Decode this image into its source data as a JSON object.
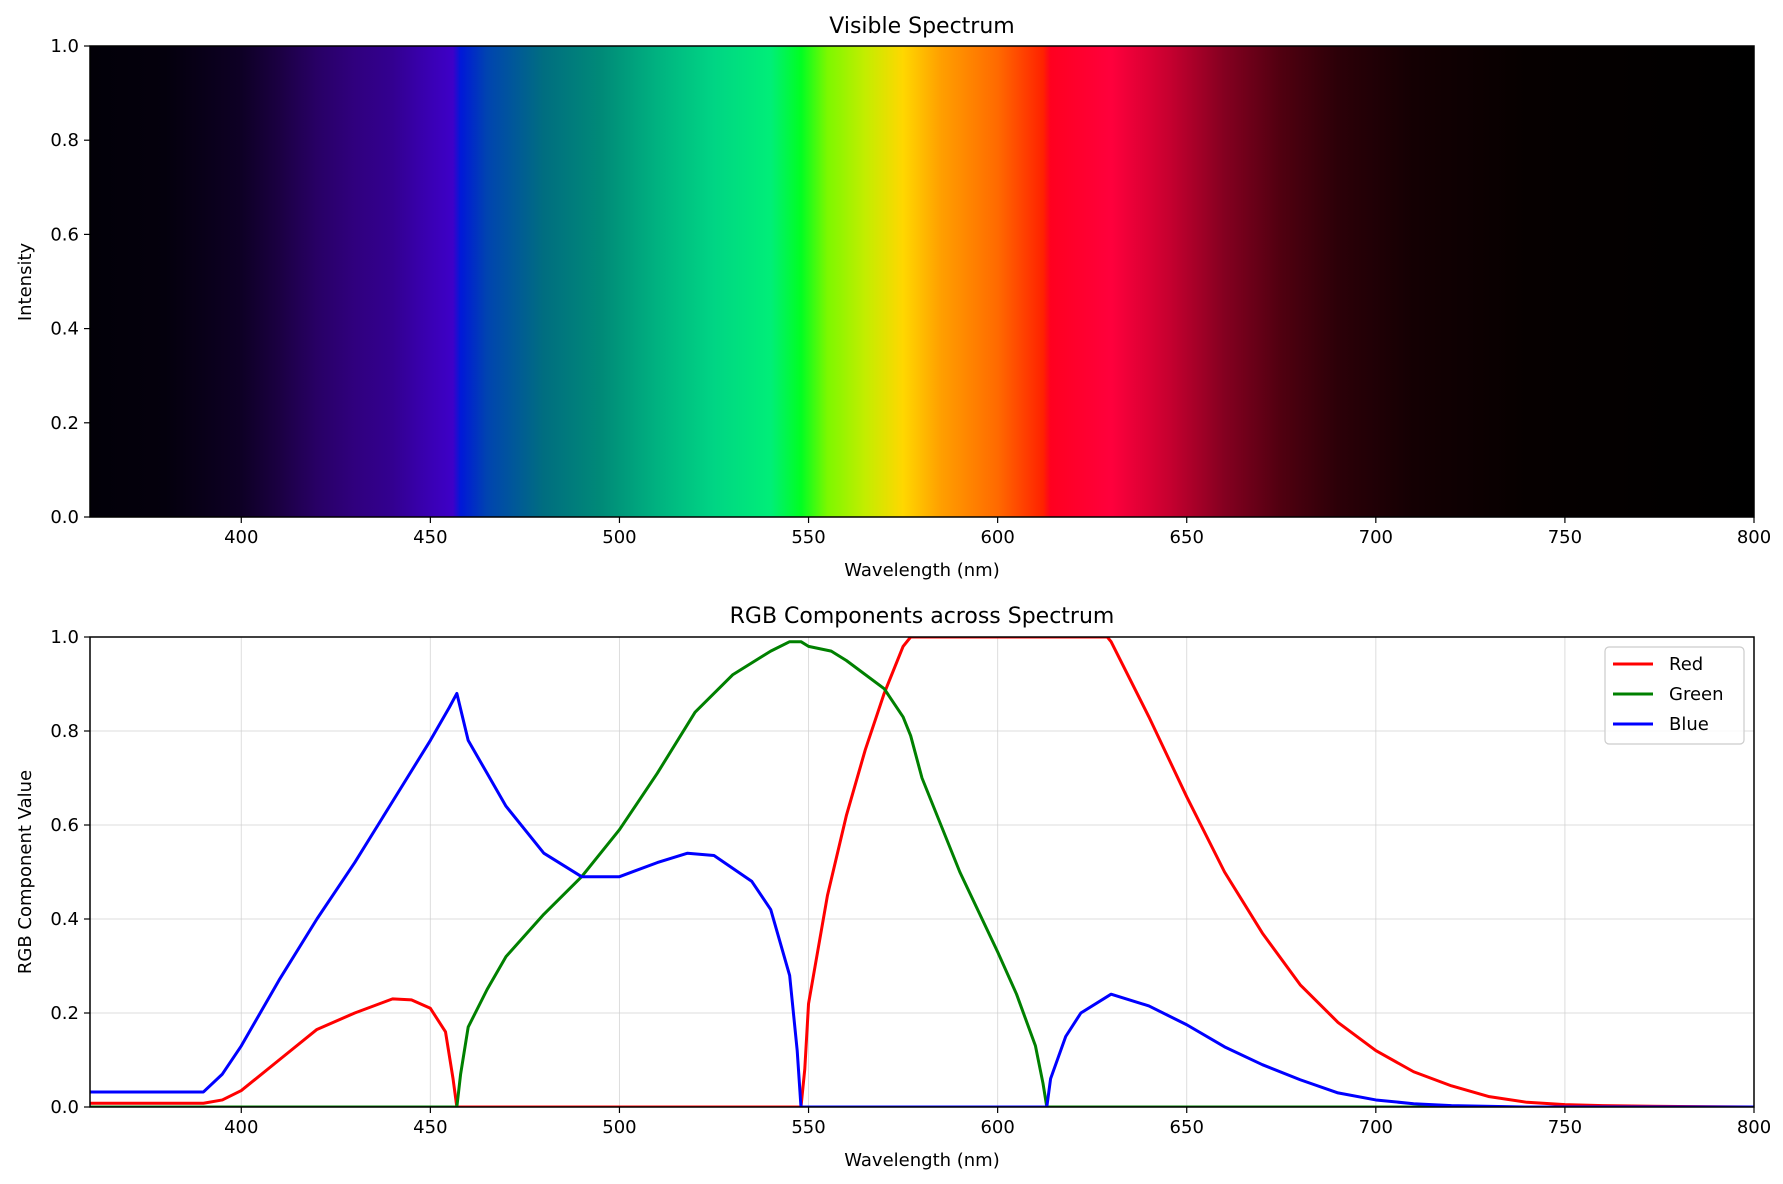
{
  "chart_data": [
    {
      "type": "heatmap",
      "title": "Visible Spectrum",
      "xlabel": "Wavelength (nm)",
      "ylabel": "Intensity",
      "xlim": [
        360,
        800
      ],
      "ylim": [
        0,
        1
      ],
      "xticks": [
        400,
        450,
        500,
        550,
        600,
        650,
        700,
        750,
        800
      ],
      "yticks": [
        0.0,
        0.2,
        0.4,
        0.6,
        0.8,
        1.0
      ],
      "grid": false,
      "legend": "none",
      "colors": [
        {
          "x": 360,
          "color": "#020008"
        },
        {
          "x": 380,
          "color": "#04000d"
        },
        {
          "x": 400,
          "color": "#0e0025"
        },
        {
          "x": 410,
          "color": "#1b0042"
        },
        {
          "x": 420,
          "color": "#280065"
        },
        {
          "x": 430,
          "color": "#30007e"
        },
        {
          "x": 440,
          "color": "#330090"
        },
        {
          "x": 450,
          "color": "#3a00b4"
        },
        {
          "x": 456,
          "color": "#3e00c8"
        },
        {
          "x": 458,
          "color": "#0018d8"
        },
        {
          "x": 465,
          "color": "#0044b0"
        },
        {
          "x": 480,
          "color": "#006e80"
        },
        {
          "x": 495,
          "color": "#008a78"
        },
        {
          "x": 510,
          "color": "#00b280"
        },
        {
          "x": 525,
          "color": "#00d584"
        },
        {
          "x": 540,
          "color": "#00ee78"
        },
        {
          "x": 548,
          "color": "#00ff22"
        },
        {
          "x": 555,
          "color": "#7cf800"
        },
        {
          "x": 565,
          "color": "#c3ed00"
        },
        {
          "x": 575,
          "color": "#ffd700"
        },
        {
          "x": 585,
          "color": "#ff9f00"
        },
        {
          "x": 600,
          "color": "#ff6a00"
        },
        {
          "x": 612,
          "color": "#ff2200"
        },
        {
          "x": 614,
          "color": "#ff0020"
        },
        {
          "x": 630,
          "color": "#ff003c"
        },
        {
          "x": 645,
          "color": "#c80030"
        },
        {
          "x": 660,
          "color": "#840020"
        },
        {
          "x": 675,
          "color": "#500010"
        },
        {
          "x": 690,
          "color": "#2c0008"
        },
        {
          "x": 710,
          "color": "#140003"
        },
        {
          "x": 740,
          "color": "#060000"
        },
        {
          "x": 800,
          "color": "#000000"
        }
      ]
    },
    {
      "type": "line",
      "title": "RGB Components across Spectrum",
      "xlabel": "Wavelength (nm)",
      "ylabel": "RGB Component Value",
      "xlim": [
        360,
        800
      ],
      "ylim": [
        0,
        1
      ],
      "xticks": [
        400,
        450,
        500,
        550,
        600,
        650,
        700,
        750,
        800
      ],
      "yticks": [
        0.0,
        0.2,
        0.4,
        0.6,
        0.8,
        1.0
      ],
      "grid": true,
      "legend": "top-right",
      "series": [
        {
          "name": "Red",
          "color": "#ff0000",
          "points": [
            [
              360,
              0.008
            ],
            [
              390,
              0.008
            ],
            [
              395,
              0.015
            ],
            [
              400,
              0.035
            ],
            [
              410,
              0.1
            ],
            [
              420,
              0.165
            ],
            [
              430,
              0.2
            ],
            [
              440,
              0.23
            ],
            [
              445,
              0.228
            ],
            [
              450,
              0.21
            ],
            [
              454,
              0.16
            ],
            [
              456,
              0.06
            ],
            [
              457,
              0.0
            ],
            [
              548,
              0.0
            ],
            [
              549,
              0.08
            ],
            [
              550,
              0.22
            ],
            [
              555,
              0.45
            ],
            [
              560,
              0.62
            ],
            [
              565,
              0.76
            ],
            [
              570,
              0.88
            ],
            [
              575,
              0.98
            ],
            [
              577,
              1.0
            ],
            [
              629,
              1.0
            ],
            [
              630,
              0.99
            ],
            [
              640,
              0.83
            ],
            [
              650,
              0.66
            ],
            [
              660,
              0.5
            ],
            [
              670,
              0.37
            ],
            [
              680,
              0.26
            ],
            [
              690,
              0.18
            ],
            [
              700,
              0.12
            ],
            [
              710,
              0.075
            ],
            [
              720,
              0.045
            ],
            [
              730,
              0.022
            ],
            [
              740,
              0.01
            ],
            [
              750,
              0.005
            ],
            [
              760,
              0.003
            ],
            [
              780,
              0.001
            ],
            [
              800,
              0.0
            ]
          ]
        },
        {
          "name": "Green",
          "color": "#008000",
          "points": [
            [
              360,
              0.0
            ],
            [
              457,
              0.0
            ],
            [
              458,
              0.07
            ],
            [
              460,
              0.17
            ],
            [
              465,
              0.25
            ],
            [
              470,
              0.32
            ],
            [
              480,
              0.41
            ],
            [
              490,
              0.49
            ],
            [
              500,
              0.59
            ],
            [
              510,
              0.71
            ],
            [
              520,
              0.84
            ],
            [
              530,
              0.92
            ],
            [
              540,
              0.97
            ],
            [
              545,
              0.99
            ],
            [
              548,
              0.99
            ],
            [
              550,
              0.98
            ],
            [
              556,
              0.97
            ],
            [
              560,
              0.95
            ],
            [
              570,
              0.89
            ],
            [
              575,
              0.83
            ],
            [
              577,
              0.79
            ],
            [
              580,
              0.7
            ],
            [
              590,
              0.5
            ],
            [
              600,
              0.33
            ],
            [
              605,
              0.24
            ],
            [
              610,
              0.13
            ],
            [
              612,
              0.05
            ],
            [
              613,
              0.0
            ],
            [
              800,
              0.0
            ]
          ]
        },
        {
          "name": "Blue",
          "color": "#0000ff",
          "points": [
            [
              360,
              0.032
            ],
            [
              390,
              0.032
            ],
            [
              395,
              0.07
            ],
            [
              400,
              0.13
            ],
            [
              410,
              0.27
            ],
            [
              420,
              0.4
            ],
            [
              430,
              0.52
            ],
            [
              440,
              0.65
            ],
            [
              450,
              0.78
            ],
            [
              455,
              0.85
            ],
            [
              457,
              0.88
            ],
            [
              460,
              0.78
            ],
            [
              465,
              0.71
            ],
            [
              470,
              0.64
            ],
            [
              480,
              0.54
            ],
            [
              490,
              0.49
            ],
            [
              500,
              0.49
            ],
            [
              510,
              0.52
            ],
            [
              518,
              0.54
            ],
            [
              525,
              0.535
            ],
            [
              535,
              0.48
            ],
            [
              540,
              0.42
            ],
            [
              545,
              0.28
            ],
            [
              547,
              0.12
            ],
            [
              548,
              0.0
            ],
            [
              613,
              0.0
            ],
            [
              614,
              0.06
            ],
            [
              618,
              0.15
            ],
            [
              622,
              0.2
            ],
            [
              630,
              0.24
            ],
            [
              640,
              0.215
            ],
            [
              650,
              0.175
            ],
            [
              660,
              0.128
            ],
            [
              670,
              0.09
            ],
            [
              680,
              0.058
            ],
            [
              690,
              0.03
            ],
            [
              700,
              0.015
            ],
            [
              710,
              0.007
            ],
            [
              720,
              0.003
            ],
            [
              740,
              0.0
            ],
            [
              800,
              0.0
            ]
          ]
        }
      ]
    }
  ]
}
